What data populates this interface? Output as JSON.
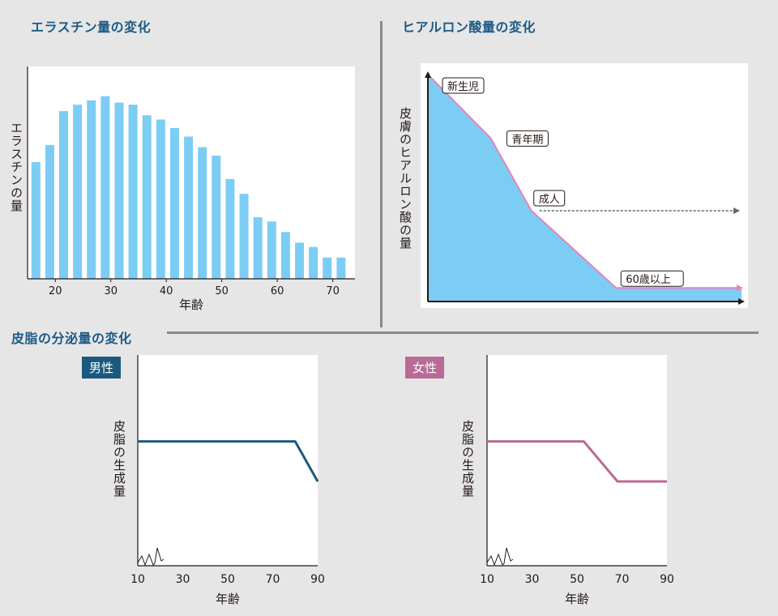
{
  "colors": {
    "heading": "#1c5a85",
    "bar": "#7ccdf4",
    "area": "#7ccdf4",
    "pink_line": "#e981bc",
    "male": "#1b5a7e",
    "female": "#b86b95",
    "divider": "#8a8a8a"
  },
  "headings": {
    "elastin": "エラスチン量の変化",
    "hyaluronic": "ヒアルロン酸量の変化",
    "sebum": "皮脂の分泌量の変化"
  },
  "chart_data": [
    {
      "type": "bar",
      "title": "エラスチン量の変化",
      "xlabel": "年齢",
      "ylabel": "エラスチンの量",
      "x_ticks": [
        "20",
        "30",
        "40",
        "50",
        "60",
        "70"
      ],
      "xlim": [
        15,
        74
      ],
      "ylim": [
        0,
        100
      ],
      "x": [
        16.5,
        19,
        21.5,
        24,
        26.5,
        29,
        31.5,
        34,
        36.5,
        39,
        41.5,
        44,
        46.5,
        49,
        51.5,
        54,
        56.5,
        59,
        61.5,
        64,
        66.5,
        69,
        71.5
      ],
      "values": [
        55,
        63,
        79,
        82,
        84,
        86,
        83,
        82,
        77,
        75,
        71,
        67,
        62,
        58,
        47,
        40,
        29,
        27,
        22,
        17,
        15,
        10,
        10
      ],
      "grid": false
    },
    {
      "type": "area",
      "title": "ヒアルロン酸量の変化",
      "ylabel": "皮膚のヒアルロン酸の量",
      "xlim": [
        0,
        100
      ],
      "ylim": [
        0,
        100
      ],
      "x": [
        0,
        20,
        33,
        60,
        100
      ],
      "y": [
        100,
        72,
        40,
        6,
        6
      ],
      "annotations": [
        {
          "label": "新生児",
          "x": 0,
          "y": 100
        },
        {
          "label": "青年期",
          "x": 20,
          "y": 72
        },
        {
          "label": "成人",
          "x": 33,
          "y": 40
        },
        {
          "label": "60歳以上",
          "x": 60,
          "y": 6
        }
      ],
      "reference_line": {
        "y": 40,
        "from_x": 33,
        "style": "dashed"
      },
      "grid": false
    },
    {
      "type": "line",
      "panel_label": "男性",
      "xlabel": "年齢",
      "ylabel": "皮脂の生成量",
      "x_ticks": [
        "10",
        "30",
        "50",
        "70",
        "90"
      ],
      "xlim": [
        10,
        90
      ],
      "ylim": [
        0,
        100
      ],
      "axis_break": true,
      "x": [
        10,
        80,
        90
      ],
      "y": [
        59,
        59,
        40
      ],
      "grid": false
    },
    {
      "type": "line",
      "panel_label": "女性",
      "xlabel": "年齢",
      "ylabel": "皮脂の生成量",
      "x_ticks": [
        "10",
        "30",
        "50",
        "70",
        "90"
      ],
      "xlim": [
        10,
        90
      ],
      "ylim": [
        0,
        100
      ],
      "axis_break": true,
      "x": [
        10,
        53,
        68,
        90
      ],
      "y": [
        59,
        59,
        40,
        40
      ],
      "grid": false
    }
  ]
}
